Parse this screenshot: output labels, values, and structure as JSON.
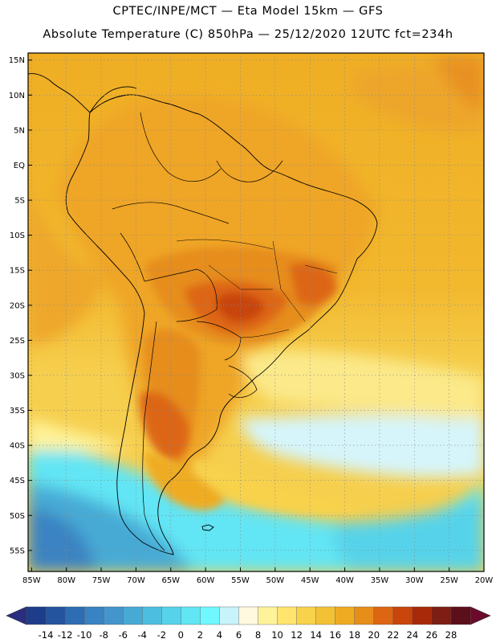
{
  "header": {
    "line1": "CPTEC/INPE/MCT —   Eta Model 15km — GFS",
    "line2": "Absolute Temperature (C) 850hPa — 25/12/2020 12UTC fct=234h"
  },
  "map": {
    "lat_labels": [
      "15N",
      "10N",
      "5N",
      "EQ",
      "5S",
      "10S",
      "15S",
      "20S",
      "25S",
      "30S",
      "35S",
      "40S",
      "45S",
      "50S",
      "55S"
    ],
    "lat_values": [
      15,
      10,
      5,
      0,
      -5,
      -10,
      -15,
      -20,
      -25,
      -30,
      -35,
      -40,
      -45,
      -50,
      -55
    ],
    "lon_labels": [
      "85W",
      "80W",
      "75W",
      "70W",
      "65W",
      "60W",
      "55W",
      "50W",
      "45W",
      "40W",
      "35W",
      "30W",
      "25W",
      "20W"
    ],
    "lon_values": [
      -85,
      -80,
      -75,
      -70,
      -65,
      -60,
      -55,
      -50,
      -45,
      -40,
      -35,
      -30,
      -25,
      -20
    ],
    "lon_range": [
      -85.5,
      -20.0
    ],
    "lat_range": [
      -58.0,
      16.0
    ],
    "grid": "dotted"
  },
  "colorbar": {
    "labels": [
      "-14",
      "-12",
      "-10",
      "-8",
      "-6",
      "-4",
      "-2",
      "0",
      "2",
      "4",
      "6",
      "8",
      "10",
      "12",
      "14",
      "16",
      "18",
      "20",
      "22",
      "24",
      "26",
      "28"
    ],
    "colors": [
      "#1d3d8a",
      "#25549e",
      "#2f6db2",
      "#3a83c2",
      "#4396cb",
      "#47aad5",
      "#4cbfe0",
      "#56d3ea",
      "#62e5f4",
      "#6ff8ff",
      "#c9f3fb",
      "#fff9df",
      "#fff39a",
      "#ffe56e",
      "#f8d24b",
      "#f3c135",
      "#efac22",
      "#e68d1a",
      "#dd6612",
      "#c8450b",
      "#a8280a",
      "#7d1d14",
      "#5a0f1b"
    ],
    "low_arrow_color": "#2a2e7e",
    "high_arrow_color": "#6b0a2a"
  }
}
